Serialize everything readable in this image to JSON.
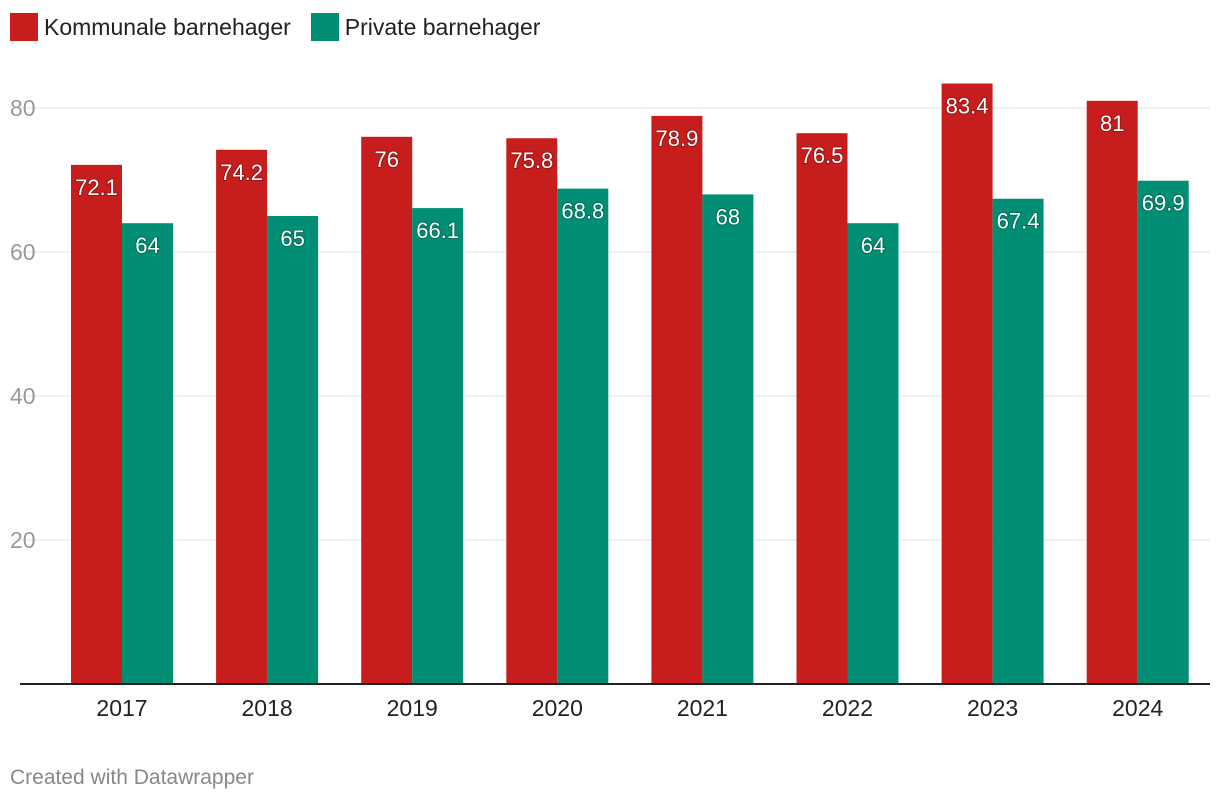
{
  "chart_data": {
    "type": "bar",
    "categories": [
      "2017",
      "2018",
      "2019",
      "2020",
      "2021",
      "2022",
      "2023",
      "2024"
    ],
    "series": [
      {
        "name": "Kommunale barnehager",
        "color": "#c71e1d",
        "values": [
          72.1,
          74.2,
          76,
          75.8,
          78.9,
          76.5,
          83.4,
          81
        ],
        "labels": [
          "72.1",
          "74.2",
          "76",
          "75.8",
          "78.9",
          "76.5",
          "83.4",
          "81"
        ]
      },
      {
        "name": "Private barnehager",
        "color": "#008f74",
        "values": [
          64,
          65,
          66.1,
          68.8,
          68,
          64,
          67.4,
          69.9
        ],
        "labels": [
          "64",
          "65",
          "66.1",
          "68.8",
          "68",
          "64",
          "67.4",
          "69.9"
        ]
      }
    ],
    "yticks": [
      "20",
      "40",
      "60",
      "80"
    ],
    "ylim": [
      0,
      83.4
    ],
    "legend_position": "top-left",
    "grid": true
  },
  "footer": "Created with Datawrapper"
}
